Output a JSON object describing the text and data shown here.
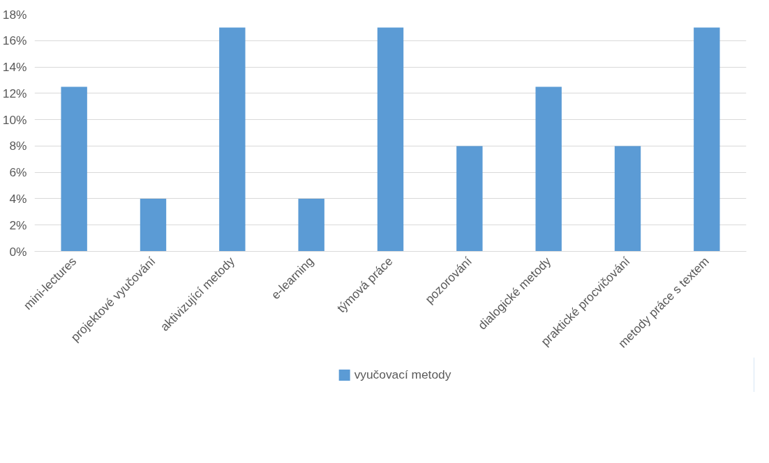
{
  "chart_data": {
    "type": "bar",
    "categories": [
      "mini-lectures",
      "projektové vyučování",
      "aktivizující metody",
      "e-learning",
      "týmová práce",
      "pozorování",
      "dialogické metody",
      "praktické procvičování",
      "metody práce s textem"
    ],
    "series": [
      {
        "name": "vyučovací metody",
        "color": "#5b9bd5",
        "values": [
          12.5,
          4,
          17,
          4,
          17,
          8,
          12.5,
          8,
          17
        ]
      }
    ],
    "ylim": [
      0,
      18
    ],
    "yticks": [
      {
        "value": 0,
        "label": "0%"
      },
      {
        "value": 2,
        "label": "2%"
      },
      {
        "value": 4,
        "label": "4%"
      },
      {
        "value": 6,
        "label": "6%"
      },
      {
        "value": 8,
        "label": "8%"
      },
      {
        "value": 10,
        "label": "10%"
      },
      {
        "value": 12,
        "label": "12%"
      },
      {
        "value": 14,
        "label": "14%"
      },
      {
        "value": 16,
        "label": "16%"
      },
      {
        "value": 18,
        "label": "18%"
      }
    ],
    "grid": "y",
    "legend": "bottom"
  }
}
